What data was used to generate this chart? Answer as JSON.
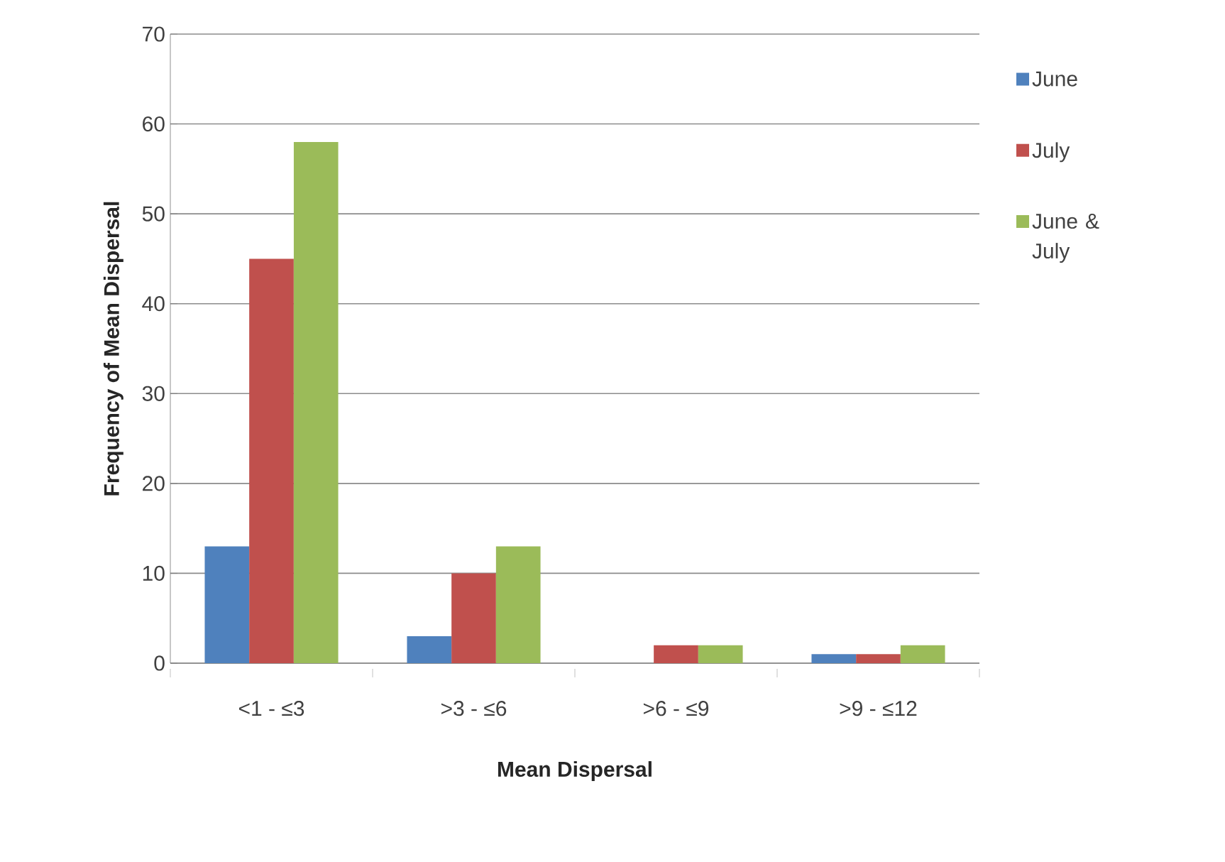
{
  "chart_data": {
    "type": "bar",
    "xlabel": "Mean Dispersal",
    "ylabel": "Frequency of Mean Dispersal",
    "categories": [
      "<1 - ≤3",
      ">3 - ≤6",
      ">6 - ≤9",
      ">9 - ≤12"
    ],
    "series": [
      {
        "name": "June",
        "color": "#4f81bd",
        "values": [
          13,
          3,
          0,
          1
        ]
      },
      {
        "name": "July",
        "color": "#c0504d",
        "values": [
          45,
          10,
          2,
          1
        ]
      },
      {
        "name": "June & July",
        "color": "#9bbb59",
        "values": [
          58,
          13,
          2,
          2
        ]
      }
    ],
    "ylim": [
      0,
      70
    ],
    "yticks": [
      0,
      10,
      20,
      30,
      40,
      50,
      60,
      70
    ],
    "grid": "y",
    "legend": "right"
  }
}
